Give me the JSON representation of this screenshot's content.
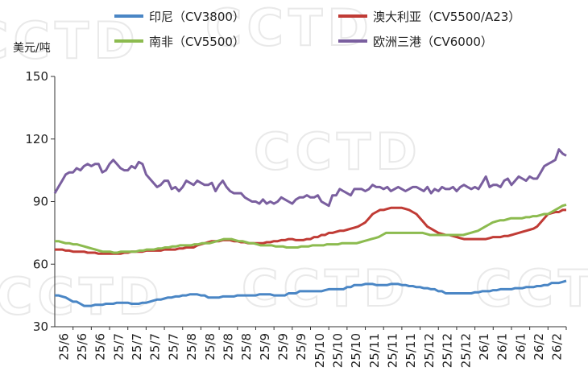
{
  "chart_data": {
    "type": "line",
    "ylabel": "美元/吨",
    "ylim": [
      30,
      150
    ],
    "yticks": [
      30,
      60,
      90,
      120,
      150
    ],
    "grid": false,
    "legend_position": "top",
    "watermark": "CCTD",
    "x_tick_labels": [
      "25/6",
      "25/6",
      "25/6",
      "25/7",
      "25/7",
      "25/7",
      "25/7",
      "25/8",
      "25/8",
      "25/8",
      "25/8",
      "25/9",
      "25/9",
      "25/9",
      "25/10",
      "25/10",
      "25/10",
      "25/11",
      "25/11",
      "25/11",
      "25/12",
      "25/12",
      "25/12",
      "26/1",
      "26/1",
      "26/1",
      "26/2",
      "26/2"
    ],
    "series": [
      {
        "name": "印尼（CV3800）",
        "color": "#4a86c5",
        "values": [
          45,
          45,
          44.5,
          44,
          43,
          42,
          42,
          41,
          40,
          40,
          40,
          40.5,
          40.5,
          40.5,
          41,
          41,
          41,
          41.5,
          41.5,
          41.5,
          41.5,
          41,
          41,
          41,
          41.5,
          41.5,
          42,
          42.5,
          43,
          43,
          43.5,
          44,
          44,
          44.5,
          44.5,
          45,
          45,
          45.5,
          45.5,
          45.5,
          45,
          45,
          44,
          44,
          44,
          44,
          44.5,
          44.5,
          44.5,
          44.5,
          45,
          45,
          45,
          45,
          45,
          45,
          45.5,
          45.5,
          45.5,
          45.5,
          45,
          45,
          45,
          45,
          46,
          46,
          46,
          47,
          47,
          47,
          47,
          47,
          47,
          47,
          47.5,
          48,
          48,
          48,
          48,
          48,
          49,
          49,
          50,
          50,
          50,
          50.5,
          50.5,
          50.5,
          50,
          50,
          50,
          50,
          50.5,
          50.5,
          50.5,
          50,
          50,
          49.5,
          49.5,
          49,
          49,
          48.5,
          48.5,
          48,
          48,
          47,
          47,
          46,
          46,
          46,
          46,
          46,
          46,
          46,
          46,
          46.5,
          46.5,
          47,
          47,
          47,
          47.5,
          47.5,
          48,
          48,
          48,
          48,
          48.5,
          48.5,
          48.5,
          49,
          49,
          49,
          49.5,
          49.5,
          50,
          50,
          51,
          51,
          51,
          51.5,
          52
        ]
      },
      {
        "name": "澳大利亚（CV5500/A23）",
        "color": "#c03b35",
        "values": [
          67,
          67,
          67,
          66.5,
          66.5,
          66,
          66,
          66,
          66,
          65.5,
          65.5,
          65.5,
          65,
          65,
          65,
          65,
          65,
          65,
          65,
          65.5,
          65.5,
          66,
          66,
          66,
          66,
          66.5,
          66.5,
          66.5,
          66.5,
          66.5,
          67,
          67,
          67,
          67,
          67.5,
          67.5,
          68,
          68,
          68,
          69,
          69.5,
          70,
          70.5,
          71,
          71,
          71,
          71.5,
          71.5,
          71.5,
          71,
          71,
          70.5,
          70.5,
          70,
          70,
          70,
          70,
          70,
          70.5,
          70.5,
          71,
          71,
          71.5,
          71.5,
          72,
          72,
          71.5,
          71.5,
          71.5,
          72,
          72,
          73,
          73,
          74,
          74,
          75,
          75,
          75.5,
          76,
          76,
          76.5,
          77,
          77.5,
          78,
          79,
          80,
          82,
          84,
          85,
          86,
          86,
          86.5,
          87,
          87,
          87,
          87,
          86.5,
          86,
          85,
          84,
          82,
          80,
          78,
          77,
          76,
          75,
          74.5,
          74,
          74,
          73.5,
          73,
          72.5,
          72,
          72,
          72,
          72,
          72,
          72,
          72,
          72.5,
          73,
          73,
          73,
          73.5,
          73.5,
          74,
          74.5,
          75,
          75.5,
          76,
          76.5,
          77,
          78,
          80,
          82,
          84,
          84.5,
          85,
          85,
          86,
          86
        ]
      },
      {
        "name": "南非（CV5500）",
        "color": "#8cbb4f",
        "values": [
          71,
          71,
          70.5,
          70,
          70,
          69.5,
          69.5,
          69,
          68.5,
          68,
          67.5,
          67,
          66.5,
          66,
          66,
          66,
          65.5,
          65.5,
          66,
          66,
          66,
          66,
          66,
          66.5,
          66.5,
          67,
          67,
          67,
          67.5,
          67.5,
          68,
          68,
          68.5,
          68.5,
          69,
          69,
          69,
          69,
          69.5,
          69.5,
          70,
          70,
          70,
          70.5,
          71,
          71.5,
          72,
          72,
          72,
          71.5,
          71,
          71,
          70.5,
          70,
          70,
          69.5,
          69,
          69,
          69,
          69,
          68.5,
          68.5,
          68.5,
          68,
          68,
          68,
          68,
          68.5,
          68.5,
          68.5,
          69,
          69,
          69,
          69,
          69.5,
          69.5,
          69.5,
          69.5,
          70,
          70,
          70,
          70,
          70,
          70.5,
          71,
          71.5,
          72,
          72.5,
          73,
          74,
          75,
          75,
          75,
          75,
          75,
          75,
          75,
          75,
          75,
          75,
          75,
          74.5,
          74,
          74,
          74,
          74,
          74,
          74,
          74,
          74,
          74,
          74,
          74.5,
          75,
          75.5,
          76,
          77,
          78,
          79,
          80,
          80.5,
          81,
          81,
          81.5,
          82,
          82,
          82,
          82,
          82.5,
          82.5,
          83,
          83,
          83.5,
          84,
          84,
          85,
          86,
          87,
          88,
          88.5
        ]
      },
      {
        "name": "欧洲三港（CV6000）",
        "color": "#7a5f9f",
        "values": [
          94,
          97,
          100,
          103,
          104,
          104,
          106,
          105,
          107,
          108,
          107,
          108,
          108,
          104,
          105,
          108,
          110,
          108,
          106,
          105,
          105,
          107,
          106,
          109,
          108,
          103,
          101,
          99,
          97,
          98,
          100,
          100,
          96,
          97,
          95,
          97,
          100,
          99,
          98,
          100,
          99,
          98,
          98,
          99,
          95,
          98,
          100,
          97,
          95,
          94,
          94,
          94,
          92,
          91,
          90,
          90,
          89,
          91,
          89,
          90,
          89,
          90,
          92,
          91,
          90,
          89,
          91,
          92,
          92,
          93,
          92,
          92,
          93,
          90,
          89,
          88,
          93,
          93,
          96,
          95,
          94,
          93,
          96,
          96,
          96,
          95,
          96,
          98,
          97,
          97,
          96,
          97,
          95,
          96,
          97,
          96,
          95,
          96,
          97,
          97,
          96,
          95,
          97,
          94,
          96,
          95,
          97,
          96,
          96,
          97,
          95,
          97,
          98,
          97,
          96,
          97,
          96,
          99,
          102,
          97,
          98,
          98,
          97,
          100,
          101,
          98,
          100,
          102,
          101,
          100,
          102,
          101,
          101,
          104,
          107,
          108,
          109,
          110,
          115,
          113,
          112
        ]
      }
    ]
  }
}
